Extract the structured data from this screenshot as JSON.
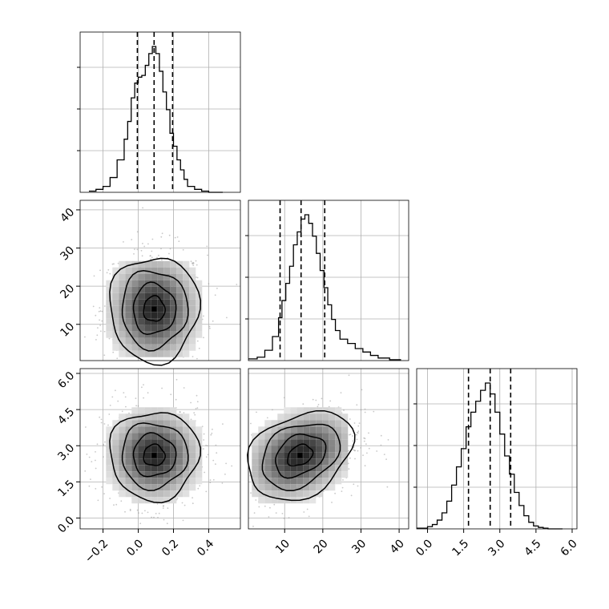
{
  "chart_data": {
    "type": "corner",
    "grid": true,
    "parameters": [
      {
        "ticks": [
          -0.2,
          0.0,
          0.2,
          0.4
        ],
        "tick_labels": [
          "−0.2",
          "0.0",
          "0.2",
          "0.4"
        ],
        "range": [
          -0.33,
          0.58
        ]
      },
      {
        "ticks": [
          10,
          20,
          30,
          40
        ],
        "tick_labels": [
          "10",
          "20",
          "30",
          "40"
        ],
        "range": [
          0.5,
          42.5
        ]
      },
      {
        "ticks": [
          0.0,
          1.5,
          3.0,
          4.5,
          6.0
        ],
        "tick_labels": [
          "0.0",
          "1.5",
          "3.0",
          "4.5",
          "6.0"
        ],
        "range": [
          -0.45,
          6.2
        ]
      }
    ],
    "histograms": [
      {
        "param": 0,
        "quantile_lines": [
          -0.005,
          0.09,
          0.195
        ],
        "bin_edges": [
          -0.28,
          -0.24,
          -0.2,
          -0.16,
          -0.12,
          -0.08,
          -0.06,
          -0.04,
          -0.02,
          0.0,
          0.02,
          0.04,
          0.06,
          0.08,
          0.1,
          0.12,
          0.14,
          0.16,
          0.18,
          0.2,
          0.22,
          0.24,
          0.26,
          0.28,
          0.32,
          0.36,
          0.4,
          0.48
        ],
        "counts": [
          2,
          5,
          10,
          25,
          55,
          90,
          120,
          160,
          185,
          195,
          198,
          215,
          235,
          247,
          235,
          205,
          170,
          140,
          100,
          78,
          55,
          38,
          22,
          10,
          5,
          2,
          0
        ]
      },
      {
        "param": 1,
        "quantile_lines": [
          8.8,
          14.3,
          20.5
        ],
        "bin_edges": [
          0.5,
          2.8,
          4.8,
          6.8,
          8.4,
          9.3,
          10.3,
          11.3,
          12.3,
          13.3,
          14.3,
          15.3,
          16.3,
          17.3,
          18.3,
          19.3,
          20.3,
          21.3,
          22.3,
          23.3,
          24.5,
          26.5,
          28.5,
          30.5,
          32.5,
          34.5,
          37.5,
          40.5
        ],
        "counts": [
          2,
          4,
          12,
          28,
          50,
          70,
          90,
          110,
          135,
          150,
          165,
          170,
          160,
          145,
          125,
          105,
          85,
          65,
          48,
          35,
          25,
          20,
          14,
          10,
          6,
          3,
          1
        ]
      },
      {
        "param": 2,
        "quantile_lines": [
          1.7,
          2.6,
          3.45
        ],
        "bin_edges": [
          -0.45,
          0.0,
          0.2,
          0.4,
          0.6,
          0.8,
          1.0,
          1.2,
          1.4,
          1.6,
          1.8,
          2.0,
          2.2,
          2.4,
          2.6,
          2.8,
          3.0,
          3.2,
          3.4,
          3.6,
          3.8,
          4.0,
          4.2,
          4.4,
          4.6,
          4.8,
          5.0,
          5.6
        ],
        "counts": [
          1,
          3,
          6,
          12,
          22,
          38,
          60,
          85,
          110,
          140,
          160,
          175,
          190,
          200,
          185,
          160,
          130,
          100,
          75,
          50,
          32,
          18,
          9,
          4,
          2,
          1,
          0
        ]
      }
    ],
    "joint_panels": [
      {
        "x_param": 0,
        "y_param": 1,
        "center": [
          0.09,
          14.0
        ],
        "spread": [
          0.11,
          6.0
        ],
        "rho": 0.0
      },
      {
        "x_param": 0,
        "y_param": 2,
        "center": [
          0.09,
          2.6
        ],
        "spread": [
          0.11,
          0.8
        ],
        "rho": 0.0
      },
      {
        "x_param": 1,
        "y_param": 2,
        "center": [
          14.0,
          2.6
        ],
        "spread": [
          6.0,
          0.8
        ],
        "rho": 0.3
      }
    ]
  }
}
